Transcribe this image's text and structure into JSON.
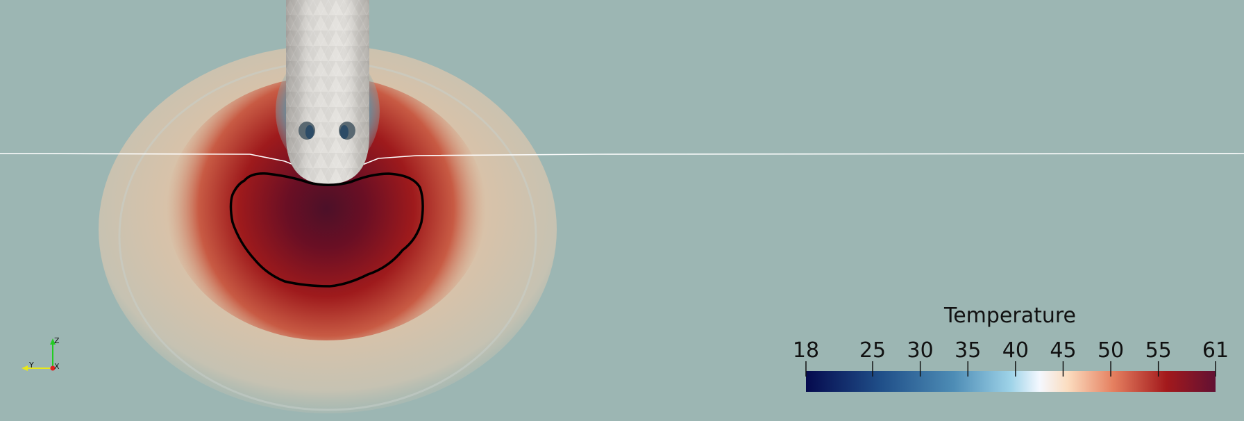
{
  "scene": {
    "background_color": "#9cb6b3",
    "surface_line_color": "#ffffff",
    "probe_color": "#dcdad6",
    "ablation_contour_color": "#000000"
  },
  "colorbar": {
    "title": "Temperature",
    "min": 18,
    "max": 61,
    "tick_labels": [
      "18",
      "25",
      "30",
      "35",
      "40",
      "45",
      "50",
      "55",
      "61"
    ],
    "colormap": "blue-white-red",
    "colors": [
      "#050a4e",
      "#2a5b91",
      "#7fbcd4",
      "#f4f8ff",
      "#fde3c9",
      "#e58060",
      "#a3191c",
      "#621133"
    ]
  },
  "orientation_axes": {
    "z_label": "Z",
    "y_label": "Y",
    "x_label": "X",
    "z_color": "#22cc22",
    "y_color": "#e8e81a",
    "x_color": "#e02020"
  }
}
